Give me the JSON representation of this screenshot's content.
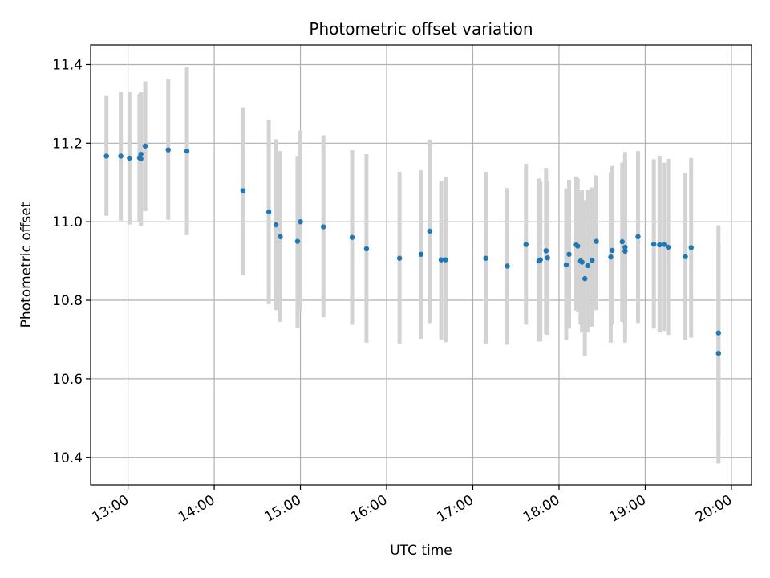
{
  "chart_data": {
    "type": "scatter",
    "title": "Photometric offset variation",
    "xlabel": "UTC time",
    "ylabel": "Photometric offset",
    "xlim": [
      "12:34",
      "20:14"
    ],
    "ylim": [
      10.33,
      11.45
    ],
    "x_ticks": [
      "13:00",
      "14:00",
      "15:00",
      "16:00",
      "17:00",
      "18:00",
      "19:00",
      "20:00"
    ],
    "y_ticks": [
      "10.4",
      "10.6",
      "10.8",
      "11.0",
      "11.2",
      "11.4"
    ],
    "grid": true,
    "colors": {
      "points": "#1f77b4",
      "errorbars": "#d3d3d3",
      "grid": "#b0b0b0"
    },
    "series": [
      {
        "x": [
          "12:45",
          "12:55",
          "13:01",
          "13:08",
          "13:09",
          "13:09",
          "13:12",
          "13:28",
          "13:41",
          "14:20",
          "14:38",
          "14:43",
          "14:46",
          "14:58",
          "15:00",
          "15:16",
          "15:36",
          "15:46",
          "16:09",
          "16:24",
          "16:30",
          "16:38",
          "16:41",
          "17:09",
          "17:24",
          "17:37",
          "17:46",
          "17:47",
          "17:51",
          "17:52",
          "18:05",
          "18:07",
          "18:12",
          "18:13",
          "18:15",
          "18:16",
          "18:18",
          "18:20",
          "18:23",
          "18:26",
          "18:36",
          "18:37",
          "18:44",
          "18:46",
          "18:46",
          "18:55",
          "19:06",
          "19:10",
          "19:13",
          "19:16",
          "19:28",
          "19:32",
          "19:51",
          "19:51"
        ],
        "y": [
          11.167,
          11.167,
          11.162,
          11.163,
          11.16,
          11.172,
          11.193,
          11.183,
          11.18,
          11.079,
          11.025,
          10.992,
          10.962,
          10.95,
          11.0,
          10.987,
          10.96,
          10.931,
          10.907,
          10.917,
          10.976,
          10.903,
          10.903,
          10.907,
          10.887,
          10.942,
          10.9,
          10.903,
          10.926,
          10.908,
          10.89,
          10.917,
          10.941,
          10.938,
          10.9,
          10.897,
          10.855,
          10.888,
          10.902,
          10.95,
          10.91,
          10.927,
          10.949,
          10.925,
          10.935,
          10.962,
          10.943,
          10.941,
          10.942,
          10.935,
          10.911,
          10.934,
          10.717,
          10.665
        ],
        "err_low": [
          11.015,
          11.003,
          10.993,
          11.0,
          10.99,
          11.013,
          11.027,
          11.005,
          10.966,
          10.864,
          10.79,
          10.775,
          10.745,
          10.73,
          10.772,
          10.757,
          10.738,
          10.692,
          10.69,
          10.702,
          10.742,
          10.7,
          10.693,
          10.69,
          10.687,
          10.738,
          10.695,
          10.695,
          10.714,
          10.712,
          10.698,
          10.728,
          10.774,
          10.77,
          10.738,
          10.718,
          10.658,
          10.718,
          10.733,
          10.775,
          10.692,
          10.738,
          10.745,
          10.692,
          10.74,
          10.742,
          10.728,
          10.718,
          10.722,
          10.712,
          10.698,
          10.705,
          10.444,
          10.384
        ],
        "err_high": [
          11.322,
          11.33,
          11.33,
          11.325,
          11.33,
          11.33,
          11.357,
          11.362,
          11.394,
          11.291,
          11.258,
          11.21,
          11.18,
          11.168,
          11.232,
          11.22,
          11.182,
          11.172,
          11.127,
          11.131,
          11.209,
          11.104,
          11.114,
          11.127,
          11.086,
          11.148,
          11.11,
          11.102,
          11.137,
          11.104,
          11.085,
          11.107,
          11.115,
          11.11,
          11.075,
          11.08,
          11.055,
          11.08,
          11.087,
          11.118,
          11.126,
          11.142,
          11.15,
          11.158,
          11.178,
          11.18,
          11.159,
          11.168,
          11.15,
          11.16,
          11.125,
          11.162,
          10.991,
          10.942
        ]
      }
    ]
  }
}
